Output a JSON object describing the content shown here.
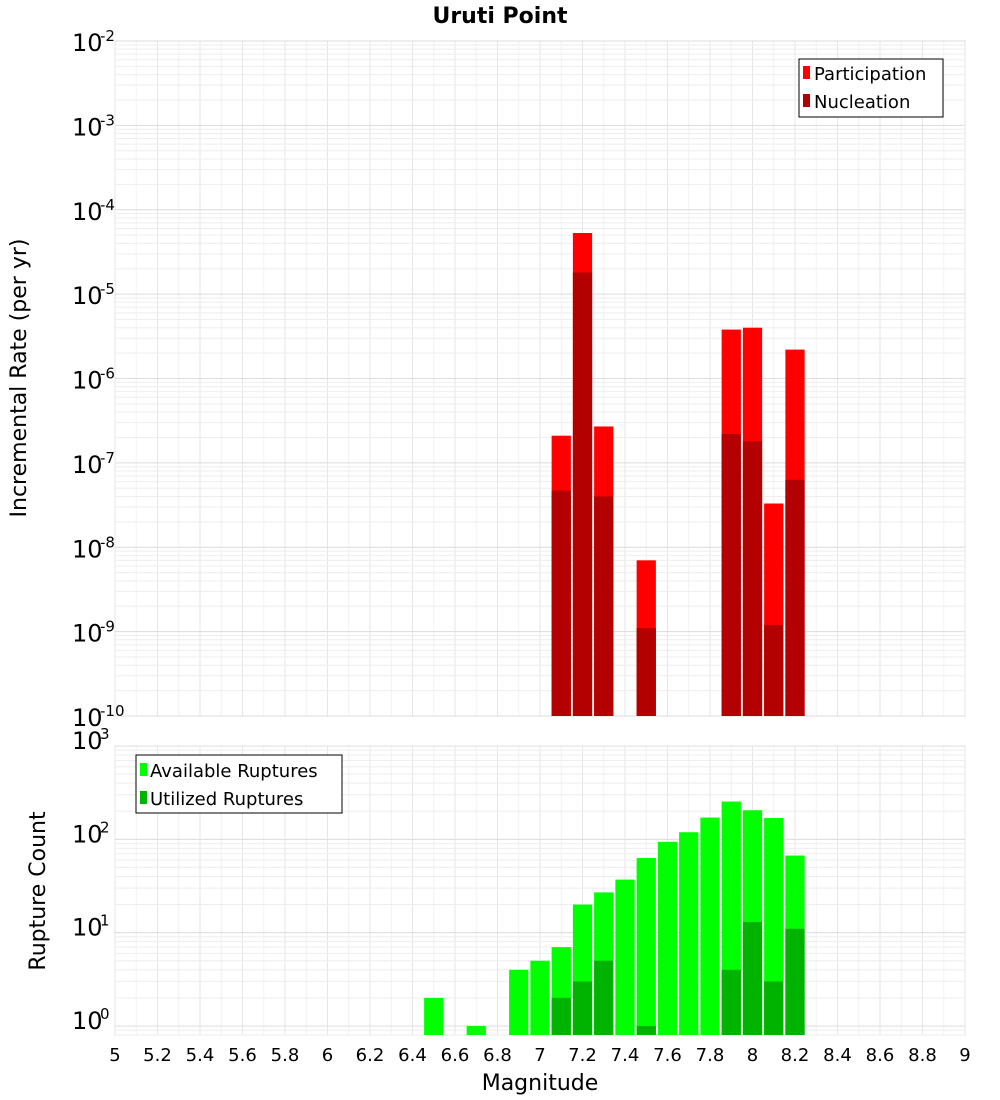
{
  "chart_data": {
    "title": "Uruti Point",
    "xlabel": "Magnitude",
    "xlim": [
      5,
      9
    ],
    "x_ticks": [
      "5",
      "5.2",
      "5.4",
      "5.6",
      "5.8",
      "6",
      "6.2",
      "6.4",
      "6.6",
      "6.8",
      "7",
      "7.2",
      "7.4",
      "7.6",
      "7.8",
      "8",
      "8.2",
      "8.4",
      "8.6",
      "8.8",
      "9"
    ],
    "bin_width": 0.1,
    "panels": [
      {
        "type": "bar",
        "ylabel": "Incremental Rate (per yr)",
        "yscale": "log",
        "ylim": [
          1e-10,
          0.01
        ],
        "y_tick_exponents": [
          "-10",
          "-9",
          "-8",
          "-7",
          "-6",
          "-5",
          "-4",
          "-3",
          "-2"
        ],
        "grid": true,
        "legend_position": "top-right",
        "series": [
          {
            "name": "Participation",
            "color": "#ff0000",
            "points": [
              {
                "x": 7.1,
                "y": 2.1e-07
              },
              {
                "x": 7.2,
                "y": 5.3e-05
              },
              {
                "x": 7.3,
                "y": 2.7e-07
              },
              {
                "x": 7.5,
                "y": 7e-09
              },
              {
                "x": 7.9,
                "y": 3.8e-06
              },
              {
                "x": 8.0,
                "y": 4e-06
              },
              {
                "x": 8.1,
                "y": 3.3e-08
              },
              {
                "x": 8.2,
                "y": 2.2e-06
              }
            ]
          },
          {
            "name": "Nucleation",
            "color": "#b30000",
            "points": [
              {
                "x": 7.1,
                "y": 4.7e-08
              },
              {
                "x": 7.2,
                "y": 1.8e-05
              },
              {
                "x": 7.3,
                "y": 4e-08
              },
              {
                "x": 7.5,
                "y": 1.1e-09
              },
              {
                "x": 7.9,
                "y": 2.2e-07
              },
              {
                "x": 8.0,
                "y": 1.8e-07
              },
              {
                "x": 8.1,
                "y": 1.2e-09
              },
              {
                "x": 8.2,
                "y": 6.3e-08
              }
            ]
          }
        ]
      },
      {
        "type": "bar",
        "ylabel": "Rupture Count",
        "yscale": "log",
        "ylim": [
          0.8,
          1000
        ],
        "y_tick_exponents": [
          "0",
          "1",
          "2",
          "3"
        ],
        "grid": true,
        "legend_position": "top-left",
        "series": [
          {
            "name": "Available Ruptures",
            "color": "#00ff00",
            "points": [
              {
                "x": 6.5,
                "y": 2
              },
              {
                "x": 6.7,
                "y": 1
              },
              {
                "x": 6.9,
                "y": 4
              },
              {
                "x": 7.0,
                "y": 5
              },
              {
                "x": 7.1,
                "y": 7
              },
              {
                "x": 7.2,
                "y": 20
              },
              {
                "x": 7.3,
                "y": 27
              },
              {
                "x": 7.4,
                "y": 37
              },
              {
                "x": 7.5,
                "y": 63
              },
              {
                "x": 7.6,
                "y": 94
              },
              {
                "x": 7.7,
                "y": 119
              },
              {
                "x": 7.8,
                "y": 171
              },
              {
                "x": 7.9,
                "y": 254
              },
              {
                "x": 8.0,
                "y": 205
              },
              {
                "x": 8.1,
                "y": 169
              },
              {
                "x": 8.2,
                "y": 67
              }
            ]
          },
          {
            "name": "Utilized Ruptures",
            "color": "#00b300",
            "points": [
              {
                "x": 7.1,
                "y": 2
              },
              {
                "x": 7.2,
                "y": 3
              },
              {
                "x": 7.3,
                "y": 5
              },
              {
                "x": 7.5,
                "y": 1
              },
              {
                "x": 7.9,
                "y": 4
              },
              {
                "x": 8.0,
                "y": 13
              },
              {
                "x": 8.1,
                "y": 3
              },
              {
                "x": 8.2,
                "y": 11
              }
            ]
          }
        ]
      }
    ]
  }
}
